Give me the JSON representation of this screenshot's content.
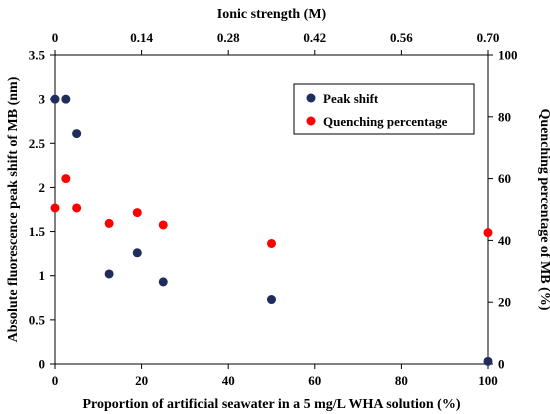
{
  "chart_data": {
    "type": "scatter",
    "title": "",
    "xlabel": "Proportion of artificial seawater in a 5 mg/L WHA solution (%)",
    "ylabel": "Absolute fluorescence peak shift of MB (nm)",
    "y2label": "Quenching percentage of MB (%)",
    "x2label": "Ionic strength (M)",
    "xlim": [
      0,
      100
    ],
    "ylim": [
      0,
      3.5
    ],
    "y2lim": [
      0,
      100
    ],
    "x2lim": [
      0,
      0.7
    ],
    "xticks": [
      "0",
      "20",
      "40",
      "60",
      "80",
      "100"
    ],
    "yticks": [
      "0",
      "0.5",
      "1",
      "1.5",
      "2",
      "2.5",
      "3",
      "3.5"
    ],
    "y2ticks": [
      "0",
      "20",
      "40",
      "60",
      "80",
      "100"
    ],
    "x2ticks": [
      "0",
      "0.14",
      "0.28",
      "0.42",
      "0.56",
      "0.70"
    ],
    "grid": false,
    "legend_position": "top-right",
    "series": [
      {
        "name": "Peak shift",
        "axis": "left",
        "color": "#1f2d5c",
        "points": [
          {
            "x": 0,
            "y": 3.0
          },
          {
            "x": 2.5,
            "y": 3.0
          },
          {
            "x": 5,
            "y": 2.61
          },
          {
            "x": 12.5,
            "y": 1.02
          },
          {
            "x": 19,
            "y": 1.26
          },
          {
            "x": 25,
            "y": 0.93
          },
          {
            "x": 50,
            "y": 0.73
          },
          {
            "x": 100,
            "y": 0.03
          }
        ]
      },
      {
        "name": "Quenching percentage",
        "axis": "right",
        "color": "#ff0000",
        "points": [
          {
            "x": 0,
            "y": 50.5
          },
          {
            "x": 2.5,
            "y": 60
          },
          {
            "x": 5,
            "y": 50.5
          },
          {
            "x": 12.5,
            "y": 45.5
          },
          {
            "x": 19,
            "y": 49
          },
          {
            "x": 25,
            "y": 45
          },
          {
            "x": 50,
            "y": 39
          },
          {
            "x": 100,
            "y": 42.5
          }
        ]
      }
    ]
  }
}
